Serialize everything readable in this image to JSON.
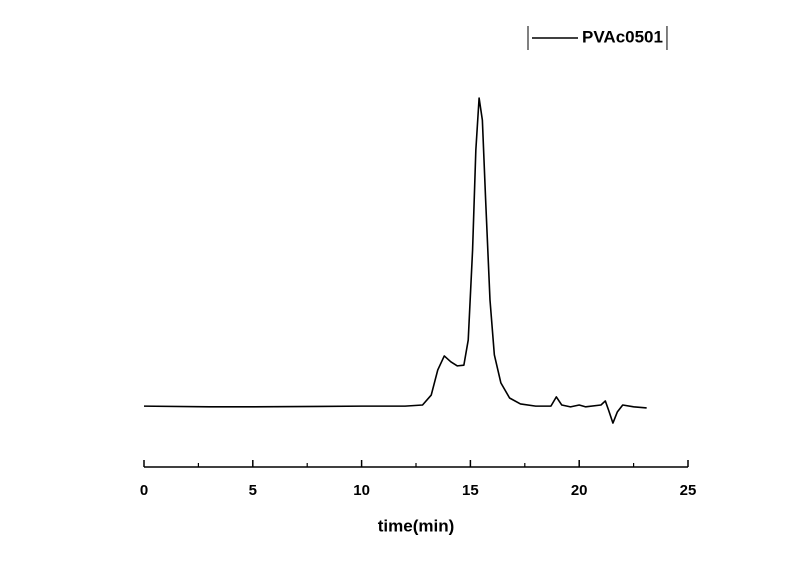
{
  "chart_data": {
    "type": "line",
    "x_label": "time(min)",
    "x": [
      0,
      3,
      5,
      8,
      10,
      12,
      12.8,
      13.2,
      13.5,
      13.8,
      14.1,
      14.4,
      14.7,
      14.9,
      15.1,
      15.25,
      15.4,
      15.55,
      15.7,
      15.9,
      16.1,
      16.4,
      16.8,
      17.3,
      18,
      18.7,
      18.95,
      19.2,
      19.6,
      20.0,
      20.3,
      21.0,
      21.2,
      21.35,
      21.55,
      21.75,
      22.0,
      22.5,
      23.1
    ],
    "series": [
      {
        "name": "PVAc0501",
        "color": "#000000",
        "values": [
          16.5,
          16.3,
          16.3,
          16.4,
          16.5,
          16.5,
          16.8,
          19.5,
          26.3,
          30.1,
          28.5,
          27.4,
          27.6,
          34.4,
          58.8,
          85.9,
          100,
          94,
          72.4,
          45.3,
          30.4,
          22.8,
          18.7,
          17.1,
          16.5,
          16.5,
          19,
          16.8,
          16.3,
          16.8,
          16.3,
          16.8,
          17.9,
          15.4,
          11.9,
          14.9,
          16.8,
          16.3,
          16
        ]
      }
    ],
    "xlim": [
      0,
      25
    ],
    "xticks": [
      0,
      5,
      10,
      15,
      20,
      25
    ],
    "ylim": [
      0,
      100
    ],
    "legend": "top-right",
    "grid": false
  }
}
